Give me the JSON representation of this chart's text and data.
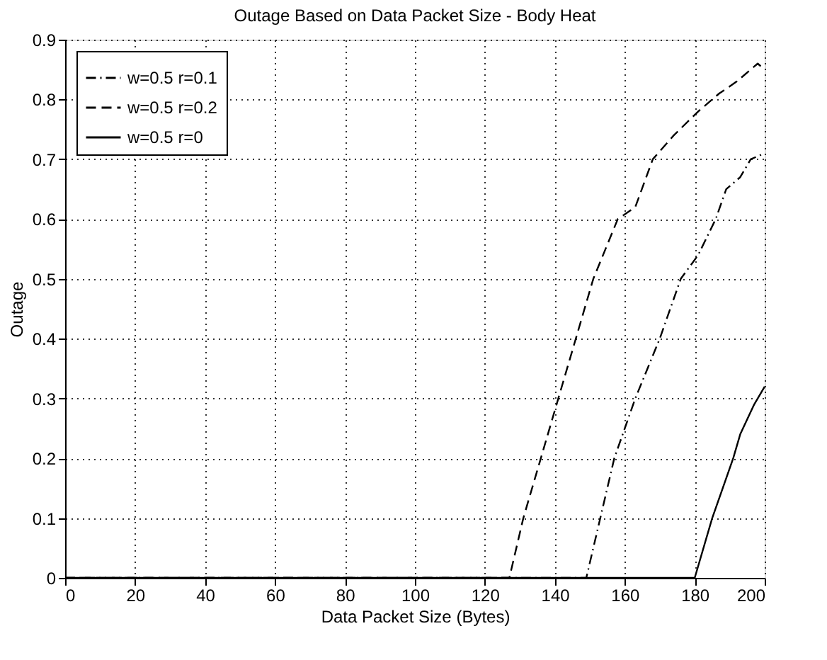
{
  "chart_data": {
    "type": "line",
    "title": "Outage Based on Data Packet Size - Body Heat",
    "xlabel": "Data Packet Size (Bytes)",
    "ylabel": "Outage",
    "xlim": [
      0,
      200
    ],
    "xticks": [
      0,
      20,
      40,
      60,
      80,
      100,
      120,
      140,
      160,
      180,
      200
    ],
    "ylim": [
      0,
      0.9
    ],
    "yticks": [
      0,
      0.1,
      0.2,
      0.3,
      0.4,
      0.5,
      0.6,
      0.7,
      0.8,
      0.9
    ],
    "grid": true,
    "legend": "top left",
    "marker": "none",
    "series": [
      {
        "name": "w=0.5 r=0.1",
        "color": "#000000",
        "line_style": "dashdot",
        "x": [
          0,
          149,
          153,
          157,
          163,
          170,
          176,
          181,
          186,
          189,
          193,
          196,
          200
        ],
        "values": [
          0,
          0,
          0.1,
          0.2,
          0.3,
          0.4,
          0.5,
          0.54,
          0.6,
          0.65,
          0.67,
          0.7,
          0.71
        ]
      },
      {
        "name": "w=0.5 r=0.2",
        "color": "#000000",
        "line_style": "dashed",
        "x": [
          0,
          127,
          131,
          136,
          141,
          146,
          151,
          158,
          163,
          168,
          174,
          181,
          187,
          192,
          196,
          198,
          200
        ],
        "values": [
          0,
          0,
          0.1,
          0.2,
          0.3,
          0.4,
          0.5,
          0.6,
          0.62,
          0.7,
          0.74,
          0.78,
          0.81,
          0.83,
          0.85,
          0.86,
          0.85
        ]
      },
      {
        "name": "w=0.5 r=0",
        "color": "#000000",
        "line_style": "solid",
        "x": [
          0,
          180,
          185,
          191,
          193,
          197,
          200
        ],
        "values": [
          0,
          0,
          0.1,
          0.2,
          0.24,
          0.29,
          0.32
        ]
      }
    ]
  }
}
